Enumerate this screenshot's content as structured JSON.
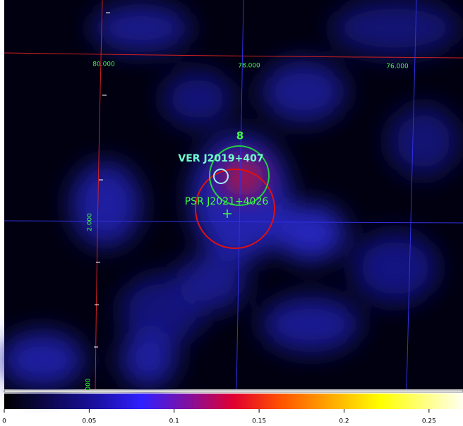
{
  "image": {
    "grid_labels": {
      "ra": [
        "80.000",
        "78.000",
        "76.000"
      ],
      "dec": [
        "2.000",
        "000"
      ]
    },
    "regions": {
      "count_label": "8",
      "ver_label": "VER J2019+407",
      "psr_label": "PSR J2021+4026"
    },
    "colorbar": {
      "range": [
        0,
        0.27
      ],
      "ticks": [
        0,
        0.05,
        0.1,
        0.15,
        0.2,
        0.25
      ]
    }
  }
}
